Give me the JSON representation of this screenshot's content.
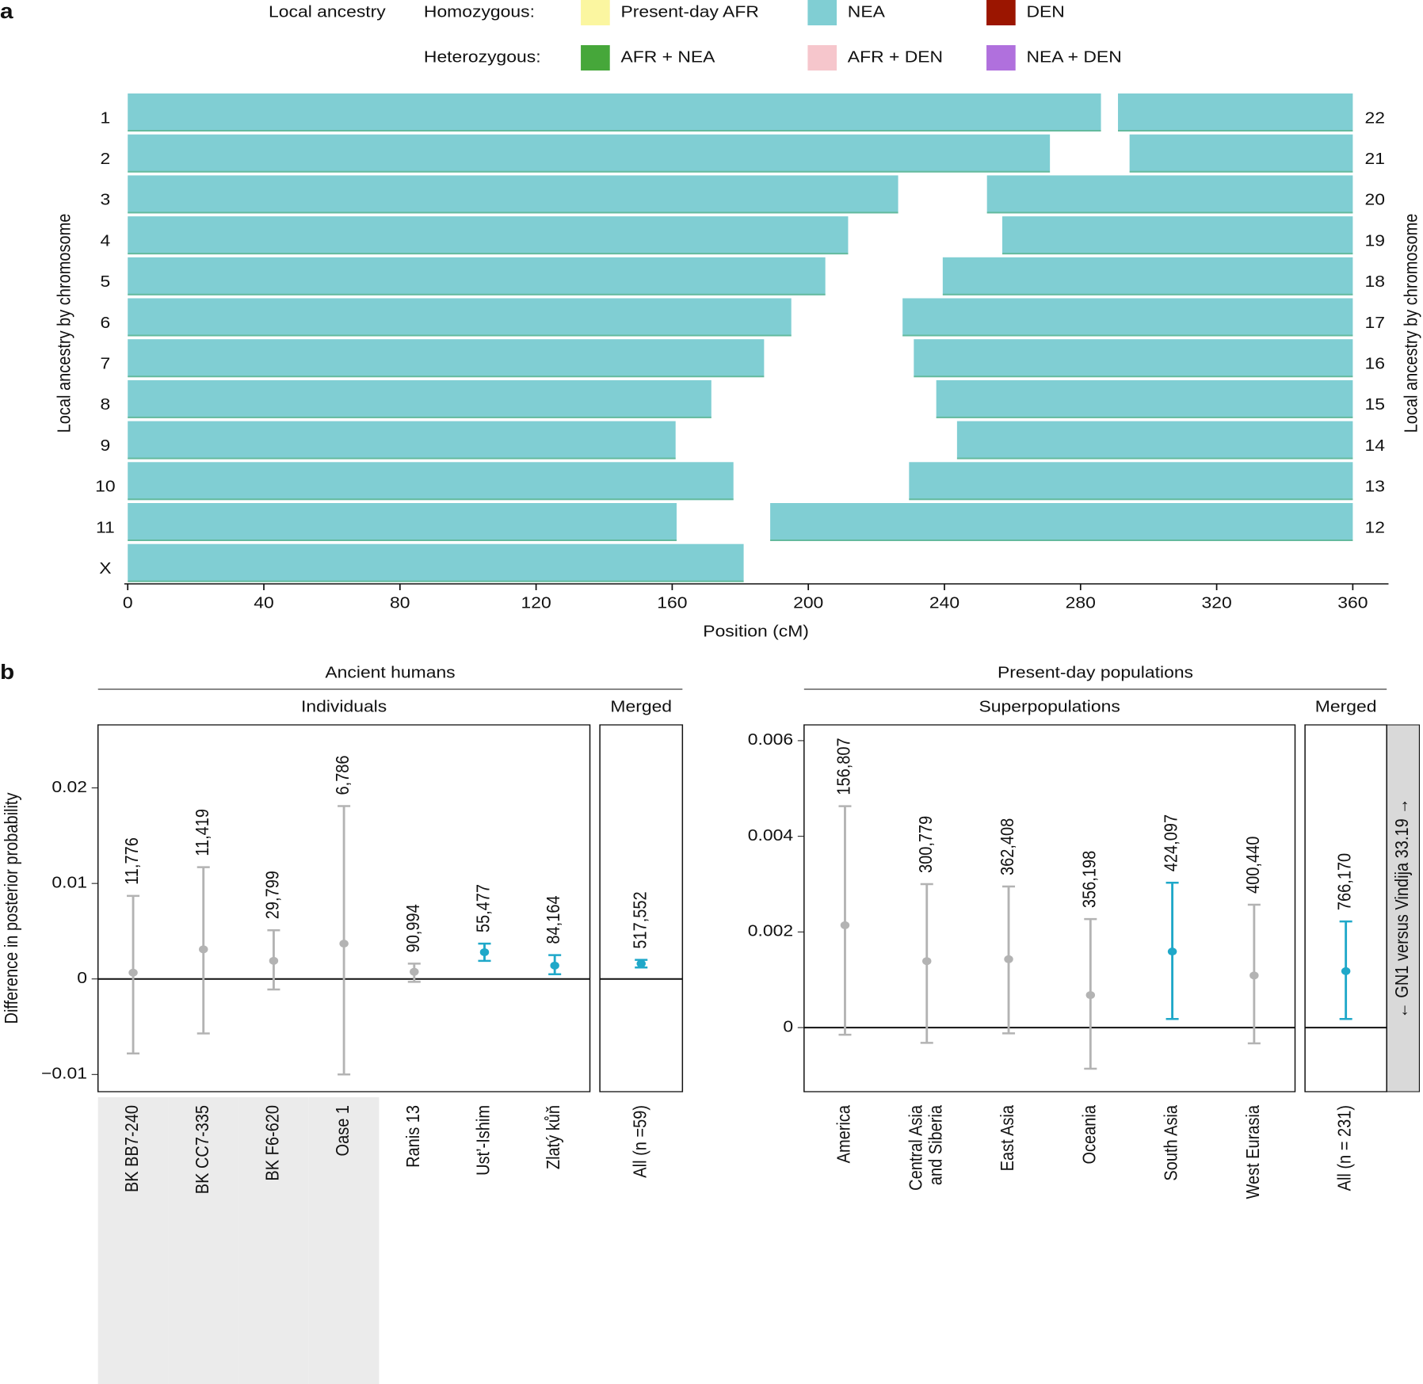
{
  "chart_data": [
    {
      "type": "ancestry",
      "panel": "a",
      "legend": {
        "title": "Local ancestry",
        "rows": [
          {
            "label": "Homozygous:",
            "items": [
              {
                "name": "Present-day AFR",
                "color": "#fbf6a0"
              },
              {
                "name": "NEA",
                "color": "#80ced3"
              },
              {
                "name": "DEN",
                "color": "#9b1500"
              }
            ]
          },
          {
            "label": "Heterozygous:",
            "items": [
              {
                "name": "AFR + NEA",
                "color": "#46a73a"
              },
              {
                "name": "AFR + DEN",
                "color": "#f6c6cc"
              },
              {
                "name": "NEA + DEN",
                "color": "#b070dd"
              }
            ]
          }
        ]
      },
      "bar_color": "#80ced3",
      "ylabel_left": "Local ancestry by chromosome",
      "ylabel_right": "Local ancestry by chromosome",
      "xlabel": "Position (cM)",
      "xlim": [
        -1,
        370.5
      ],
      "xticks": [
        0,
        40,
        80,
        120,
        160,
        200,
        240,
        280,
        320,
        360
      ],
      "chromosomes_left": [
        {
          "label": "1",
          "start": 0,
          "end": 286
        },
        {
          "label": "2",
          "start": 0,
          "end": 271
        },
        {
          "label": "3",
          "start": 0,
          "end": 226.4
        },
        {
          "label": "4",
          "start": 0,
          "end": 211.7
        },
        {
          "label": "5",
          "start": 0,
          "end": 205
        },
        {
          "label": "6",
          "start": 0,
          "end": 195
        },
        {
          "label": "7",
          "start": 0,
          "end": 187
        },
        {
          "label": "8",
          "start": 0,
          "end": 171.5
        },
        {
          "label": "9",
          "start": 0,
          "end": 161
        },
        {
          "label": "10",
          "start": 0,
          "end": 178
        },
        {
          "label": "11",
          "start": 0,
          "end": 161.3
        },
        {
          "label": "X",
          "start": 0,
          "end": 181
        }
      ],
      "chromosomes_right": [
        {
          "label": "22",
          "start": 291,
          "end": 360
        },
        {
          "label": "21",
          "start": 294.4,
          "end": 360
        },
        {
          "label": "20",
          "start": 252.5,
          "end": 360
        },
        {
          "label": "19",
          "start": 257,
          "end": 360
        },
        {
          "label": "18",
          "start": 239.5,
          "end": 360
        },
        {
          "label": "17",
          "start": 227.7,
          "end": 360
        },
        {
          "label": "16",
          "start": 231,
          "end": 360
        },
        {
          "label": "15",
          "start": 237.6,
          "end": 360
        },
        {
          "label": "14",
          "start": 243.7,
          "end": 360
        },
        {
          "label": "13",
          "start": 229.6,
          "end": 360
        },
        {
          "label": "12",
          "start": 188.8,
          "end": 360
        }
      ]
    },
    {
      "type": "errorbar",
      "panel": "b",
      "header": "Ancient humans",
      "ylabel": "Difference in posterior probability",
      "ylim": [
        -0.0118,
        0.0266
      ],
      "yticks": [
        {
          "value": -0.01,
          "label": "−0.01"
        },
        0,
        0.01,
        0.02
      ],
      "facets": [
        {
          "title": "Individuals",
          "categories": [
            "BK BB7-240",
            "BK CC7-335",
            "BK F6-620",
            "Oase 1",
            "Ranis 13",
            "Ust’-Ishim",
            "Zlatý kůň"
          ],
          "values": [
            0.00066,
            0.0031,
            0.0019,
            0.0037,
            0.00075,
            0.0028,
            0.0014
          ],
          "lower": [
            -0.0078,
            -0.0057,
            -0.0011,
            -0.01,
            -0.0003,
            0.0019,
            0.0005
          ],
          "upper": [
            0.0087,
            0.0117,
            0.0051,
            0.0181,
            0.0016,
            0.0037,
            0.0025
          ],
          "colors": [
            "#b3b3b3",
            "#b3b3b3",
            "#b3b3b3",
            "#b3b3b3",
            "#b3b3b3",
            "#1fa8c9",
            "#1fa8c9"
          ],
          "n_labels": [
            "11,776",
            "11,419",
            "29,799",
            "6,786",
            "90,994",
            "55,477",
            "84,164"
          ],
          "shaded": [
            true,
            true,
            true,
            true,
            false,
            false,
            false
          ]
        },
        {
          "title": "Merged",
          "categories": [
            "All (n =59)"
          ],
          "values": [
            0.0016
          ],
          "lower": [
            0.0012
          ],
          "upper": [
            0.002
          ],
          "colors": [
            "#1fa8c9"
          ],
          "n_labels": [
            "517,552"
          ],
          "shaded": [
            false
          ]
        }
      ]
    },
    {
      "type": "errorbar",
      "panel": null,
      "header": "Present-day populations",
      "side_label": "← GN1 versus Vindija 33.19 →",
      "ylim": [
        -0.00134,
        0.00633
      ],
      "yticks": [
        0,
        0.002,
        0.004,
        0.006
      ],
      "facets": [
        {
          "title": "Superpopulations",
          "categories": [
            "America",
            "Central Asia and Siberia",
            "East Asia",
            "Oceania",
            "South Asia",
            "West Eurasia"
          ],
          "values": [
            0.00214,
            0.00139,
            0.00143,
            0.00068,
            0.00159,
            0.00109
          ],
          "lower": [
            -0.00015,
            -0.00032,
            -0.00012,
            -0.00086,
            0.00018,
            -0.00033
          ],
          "upper": [
            0.00463,
            0.003,
            0.00295,
            0.00227,
            0.00303,
            0.00257
          ],
          "colors": [
            "#b3b3b3",
            "#b3b3b3",
            "#b3b3b3",
            "#b3b3b3",
            "#1fa8c9",
            "#b3b3b3"
          ],
          "n_labels": [
            "156,807",
            "300,779",
            "362,408",
            "356,198",
            "424,097",
            "400,440"
          ],
          "shaded": [
            false,
            false,
            false,
            false,
            false,
            false
          ]
        },
        {
          "title": "Merged",
          "categories": [
            "All (n = 231)"
          ],
          "values": [
            0.00118
          ],
          "lower": [
            0.00018
          ],
          "upper": [
            0.00222
          ],
          "colors": [
            "#1fa8c9"
          ],
          "n_labels": [
            "766,170"
          ],
          "shaded": [
            false
          ]
        }
      ]
    }
  ]
}
